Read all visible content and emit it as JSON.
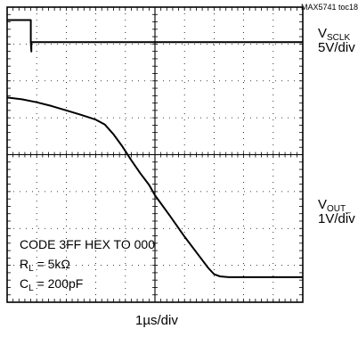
{
  "chart_data": {
    "type": "line",
    "ref_tag": "MAX5741 toc18",
    "time_scale": "1µs/div",
    "grid": {
      "x_divisions": 10,
      "y_divisions": 8,
      "on": true
    },
    "conditions": {
      "line1": "CODE 3FF HEX TO 000",
      "line2_prefix": "R",
      "line2_sub": "L",
      "line2_value": " = 5kΩ",
      "line3_prefix": "C",
      "line3_sub": "L",
      "line3_value": " = 200pF"
    },
    "series": [
      {
        "name_main": "V",
        "name_sub": "SCLK",
        "scale": "5V/div",
        "y_unit": "div",
        "x": [
          0,
          0.8,
          0.8,
          0.82,
          0.82,
          10
        ],
        "y": [
          7.65,
          7.65,
          7.05,
          6.8,
          7.05,
          7.05
        ]
      },
      {
        "name_main": "V",
        "name_sub": "OUT_",
        "scale": "1V/div",
        "y_unit": "div",
        "x": [
          0,
          0.5,
          1.0,
          1.5,
          2.0,
          2.5,
          3.0,
          3.3,
          3.6,
          3.9,
          4.2,
          4.5,
          4.8,
          5.0,
          5.5,
          6.0,
          6.5,
          6.8,
          7.0,
          7.2,
          7.5,
          8.0,
          9.0,
          10
        ],
        "y": [
          5.55,
          5.5,
          5.42,
          5.32,
          5.2,
          5.08,
          4.95,
          4.82,
          4.55,
          4.22,
          3.85,
          3.5,
          3.18,
          2.9,
          2.35,
          1.78,
          1.25,
          0.93,
          0.76,
          0.7,
          0.68,
          0.68,
          0.68,
          0.68
        ]
      }
    ]
  }
}
